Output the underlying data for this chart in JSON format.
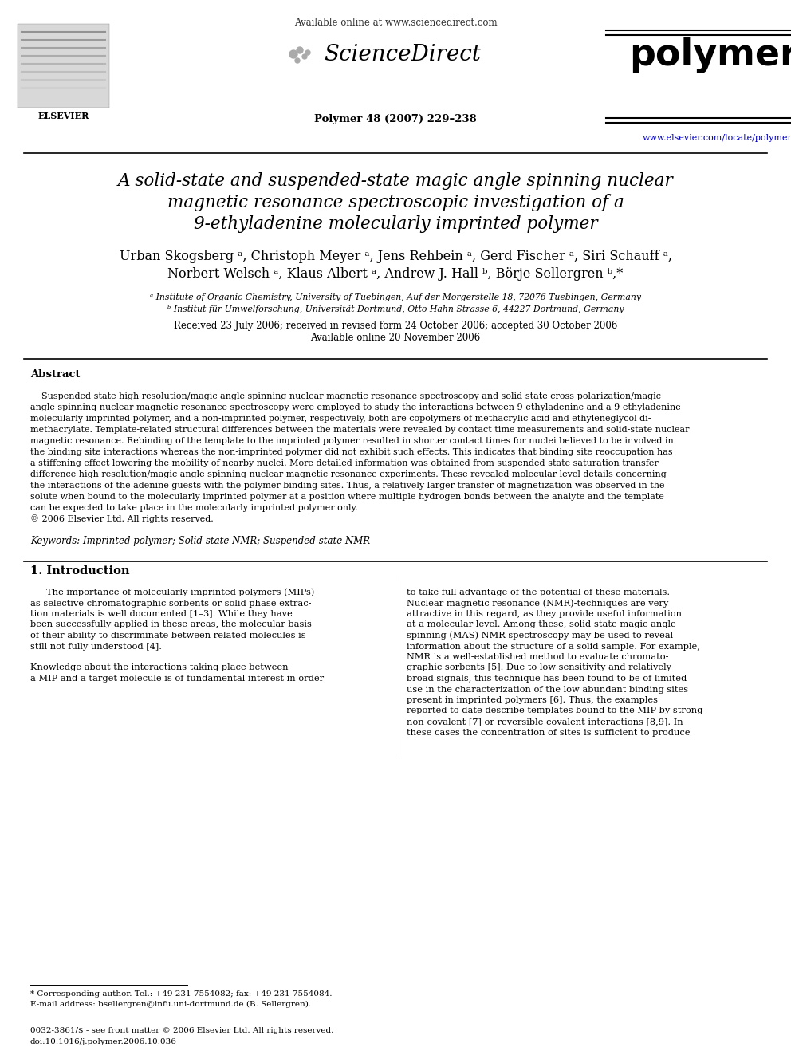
{
  "bg_color": "#ffffff",
  "available_online": "Available online at www.sciencedirect.com",
  "sciencedirect": "ScienceDirect",
  "journal_name": "polymer",
  "journal_info": "Polymer 48 (2007) 229–238",
  "url": "www.elsevier.com/locate/polymer",
  "elsevier": "ELSEVIER",
  "title_line1": "A solid-state and suspended-state magic angle spinning nuclear",
  "title_line2": "magnetic resonance spectroscopic investigation of a",
  "title_line3": "9-ethyladenine molecularly imprinted polymer",
  "author_line1": "Urban Skogsberg ᵃ, Christoph Meyer ᵃ, Jens Rehbein ᵃ, Gerd Fischer ᵃ, Siri Schauff ᵃ,",
  "author_line2": "Norbert Welsch ᵃ, Klaus Albert ᵃ, Andrew J. Hall ᵇ, Börje Sellergren ᵇ,*",
  "affil_a": "ᵃ Institute of Organic Chemistry, University of Tuebingen, Auf der Morgerstelle 18, 72076 Tuebingen, Germany",
  "affil_b": "ᵇ Institut für Umwelforschung, Universität Dortmund, Otto Hahn Strasse 6, 44227 Dortmund, Germany",
  "date_line1": "Received 23 July 2006; received in revised form 24 October 2006; accepted 30 October 2006",
  "date_line2": "Available online 20 November 2006",
  "abstract_heading": "Abstract",
  "abstract_indent": "    Suspended-state high resolution/magic angle spinning nuclear magnetic resonance spectroscopy and solid-state cross-polarization/magic",
  "abstract_lines": [
    "angle spinning nuclear magnetic resonance spectroscopy were employed to study the interactions between 9-ethyladenine and a 9-ethyladenine",
    "molecularly imprinted polymer, and a non-imprinted polymer, respectively, both are copolymers of methacrylic acid and ethyleneglycol di-",
    "methacrylate. Template-related structural differences between the materials were revealed by contact time measurements and solid-state nuclear",
    "magnetic resonance. Rebinding of the template to the imprinted polymer resulted in shorter contact times for nuclei believed to be involved in",
    "the binding site interactions whereas the non-imprinted polymer did not exhibit such effects. This indicates that binding site reoccupation has",
    "a stiffening effect lowering the mobility of nearby nuclei. More detailed information was obtained from suspended-state saturation transfer",
    "difference high resolution/magic angle spinning nuclear magnetic resonance experiments. These revealed molecular level details concerning",
    "the interactions of the adenine guests with the polymer binding sites. Thus, a relatively larger transfer of magnetization was observed in the",
    "solute when bound to the molecularly imprinted polymer at a position where multiple hydrogen bonds between the analyte and the template",
    "can be expected to take place in the molecularly imprinted polymer only.",
    "© 2006 Elsevier Ltd. All rights reserved."
  ],
  "keywords": "Keywords: Imprinted polymer; Solid-state NMR; Suspended-state NMR",
  "section1_heading": "1. Introduction",
  "col1_lines": [
    "The importance of molecularly imprinted polymers (MIPs)",
    "as selective chromatographic sorbents or solid phase extrac-",
    "tion materials is well documented [1–3]. While they have",
    "been successfully applied in these areas, the molecular basis",
    "of their ability to discriminate between related molecules is",
    "still not fully understood [4].",
    "",
    "Knowledge about the interactions taking place between",
    "a MIP and a target molecule is of fundamental interest in order"
  ],
  "col2_lines": [
    "to take full advantage of the potential of these materials.",
    "Nuclear magnetic resonance (NMR)-techniques are very",
    "attractive in this regard, as they provide useful information",
    "at a molecular level. Among these, solid-state magic angle",
    "spinning (MAS) NMR spectroscopy may be used to reveal",
    "information about the structure of a solid sample. For example,",
    "NMR is a well-established method to evaluate chromato-",
    "graphic sorbents [5]. Due to low sensitivity and relatively",
    "broad signals, this technique has been found to be of limited",
    "use in the characterization of the low abundant binding sites",
    "present in imprinted polymers [6]. Thus, the examples",
    "reported to date describe templates bound to the MIP by strong",
    "non-covalent [7] or reversible covalent interactions [8,9]. In",
    "these cases the concentration of sites is sufficient to produce"
  ],
  "footnote1": "* Corresponding author. Tel.: +49 231 7554082; fax: +49 231 7554084.",
  "footnote2": "E-mail address: bsellergren@infu.uni-dortmund.de (B. Sellergren).",
  "copyright1": "0032-3861/$ - see front matter © 2006 Elsevier Ltd. All rights reserved.",
  "copyright2": "doi:10.1016/j.polymer.2006.10.036"
}
